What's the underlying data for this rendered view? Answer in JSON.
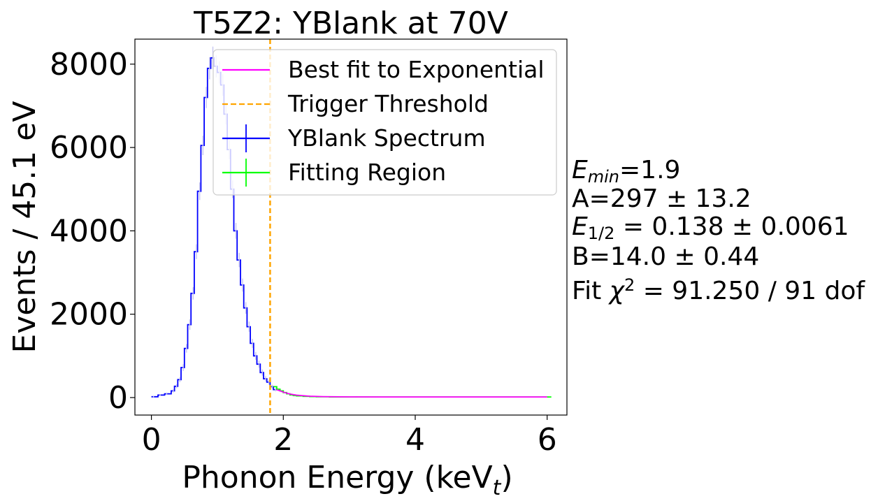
{
  "chart_data": {
    "type": "line",
    "title": "T5Z2: YBlank at 70V",
    "xlabel": "Phonon Energy (keV",
    "xlabel_sub": "t",
    "xlabel_suffix": ")",
    "ylabel": "Events / 45.1 eV",
    "xlim": [
      -0.25,
      6.3
    ],
    "ylim": [
      -420,
      8600
    ],
    "xticks": [
      0,
      2,
      4,
      6
    ],
    "yticks": [
      0,
      2000,
      4000,
      6000,
      8000
    ],
    "grid": false,
    "legend_position": "top-right",
    "legend": [
      {
        "label": "Best fit to Exponential",
        "style": "line",
        "color": "#ff00ff"
      },
      {
        "label": "Trigger Threshold",
        "style": "dashed",
        "color": "#ffa500"
      },
      {
        "label": "YBlank Spectrum",
        "style": "errorbar",
        "color": "#0000ff"
      },
      {
        "label": "Fitting Region",
        "style": "errorbar",
        "color": "#00ff00"
      }
    ],
    "threshold": {
      "x": 1.8,
      "color": "#ffa500"
    },
    "series": [
      {
        "name": "YBlank Spectrum",
        "color": "#0000ff",
        "x": [
          0.0,
          0.1,
          0.2,
          0.3,
          0.35,
          0.4,
          0.45,
          0.5,
          0.55,
          0.6,
          0.65,
          0.7,
          0.75,
          0.8,
          0.85,
          0.9,
          0.95,
          1.0,
          1.05,
          1.1,
          1.15,
          1.2,
          1.25,
          1.3,
          1.35,
          1.4,
          1.45,
          1.5,
          1.55,
          1.6,
          1.65,
          1.7,
          1.75,
          1.8,
          1.85
        ],
        "y": [
          20,
          60,
          90,
          160,
          270,
          430,
          720,
          1180,
          1750,
          2500,
          3500,
          4950,
          6050,
          7200,
          7900,
          8150,
          7950,
          7800,
          7500,
          6800,
          5950,
          5000,
          4000,
          3300,
          2700,
          2150,
          1700,
          1300,
          1000,
          800,
          600,
          450,
          370,
          260,
          190
        ]
      },
      {
        "name": "Fitting Region",
        "color": "#00ff00",
        "x": [
          1.85,
          1.9,
          1.95,
          2.0,
          2.05,
          2.1,
          2.15,
          2.2,
          2.3,
          2.4,
          2.5,
          2.7,
          3.0,
          3.5,
          4.0,
          4.5,
          5.0,
          5.5,
          6.0
        ],
        "y": [
          260,
          200,
          160,
          120,
          90,
          65,
          50,
          40,
          30,
          22,
          18,
          15,
          14,
          14,
          14,
          14,
          14,
          14,
          14
        ]
      },
      {
        "name": "Best fit to Exponential",
        "color": "#ff00ff",
        "x": [
          1.9,
          2.0,
          2.1,
          2.2,
          2.4,
          2.6,
          3.0,
          3.5,
          4.0,
          5.0,
          6.0
        ],
        "y": [
          190,
          130,
          85,
          57,
          32,
          22,
          16,
          14,
          14,
          14,
          14
        ]
      }
    ]
  },
  "annotations": {
    "emin_sym": "E",
    "emin_sub": "min",
    "emin_val": "=1.9",
    "a_line": "A=297 ± 13.2",
    "ehalf_sym": "E",
    "ehalf_sub": "1/2",
    "ehalf_val": " = 0.138 ± 0.0061",
    "b_line": "B=14.0 ± 0.44",
    "fit_prefix": "Fit ",
    "fit_chi": "χ",
    "fit_sup": "2",
    "fit_value": " = 91.250 / 91 dof"
  }
}
